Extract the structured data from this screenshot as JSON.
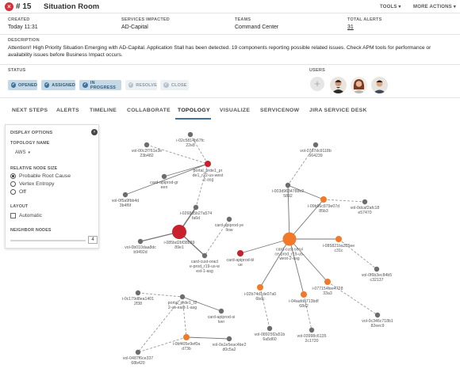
{
  "header": {
    "incident_number": "# 15",
    "title": "Situation Room",
    "tools_label": "TOOLS ▾",
    "more_actions_label": "MORE ACTIONS ▾"
  },
  "details": {
    "created_label": "CREATED",
    "created_value": "Today 11:31",
    "services_label": "SERVICES IMPACTED",
    "services_value": "AD-Capital",
    "teams_label": "TEAMS",
    "teams_value": "Command Center",
    "alerts_label": "TOTAL ALERTS",
    "alerts_value": "31",
    "description_label": "DESCRIPTION",
    "description_text": "Attention!! High Priority Situation Emerging with AD-Capital. Application Stall has been detected. 19 components reporting possible related issues. Check APM tools for performance or availability issues before Business Impact occurs."
  },
  "status": {
    "label": "STATUS",
    "steps": [
      {
        "label": "OPENED",
        "active": true
      },
      {
        "label": "ASSIGNED",
        "active": true
      },
      {
        "label": "IN PROGRESS",
        "active": true
      },
      {
        "label": "RESOLVE",
        "active": false
      },
      {
        "label": "CLOSE",
        "active": false
      }
    ]
  },
  "users": {
    "label": "USERS",
    "add_label": "+"
  },
  "tabs": [
    {
      "label": "NEXT STEPS"
    },
    {
      "label": "ALERTS"
    },
    {
      "label": "TIMELINE"
    },
    {
      "label": "COLLABORATE"
    },
    {
      "label": "TOPOLOGY",
      "active": true
    },
    {
      "label": "VISUALIZE"
    },
    {
      "label": "SERVICENOW"
    },
    {
      "label": "JIRA SERVICE DESK"
    }
  ],
  "display_options": {
    "title": "DISPLAY OPTIONS",
    "collapse_icon": "chevron-up-icon",
    "topology_name_label": "TOPOLOGY NAME",
    "topology_name_value": "AWS",
    "relative_node_size_label": "RELATIVE NODE SIZE",
    "size_options": [
      "Probable Root Cause",
      "Vertex Entropy",
      "Off"
    ],
    "size_selected": "Probable Root Cause",
    "layout_label": "LAYOUT",
    "automatic_label": "Automatic",
    "neighbor_nodes_label": "NEIGHBOR NODES",
    "neighbor_nodes_value": "4"
  },
  "colors": {
    "accent": "#3e739c",
    "critical": "#c8202c",
    "major": "#f07a2a",
    "node_gray": "#6d6d6d"
  },
  "topology": {
    "nodes": [
      {
        "id": "n1",
        "label": "i-02c5814b67fc\n22e8",
        "severity": "normal"
      },
      {
        "id": "n2",
        "label": "vol-00c2f761e3e\n23b482",
        "severity": "normal"
      },
      {
        "id": "n3",
        "label": "portal_prde1_pr\nde1_r22-us-west\n-2-asg",
        "severity": "critical"
      },
      {
        "id": "n4",
        "label": "card-apiprod-gr\neen",
        "severity": "normal"
      },
      {
        "id": "n5",
        "label": "vol-0f5a9fbb4d\n3b4f6f",
        "severity": "normal"
      },
      {
        "id": "n6",
        "label": "i-0268d5b27a574\nfa6d",
        "severity": "normal"
      },
      {
        "id": "n7",
        "label": "card-apiprod-ye\nllow",
        "severity": "normal"
      },
      {
        "id": "n8",
        "label": "vol-0b010daa8dc\nb9492d",
        "severity": "normal"
      },
      {
        "id": "n9",
        "label": "i-085bd2bf38b39\n89e1",
        "severity": "critical"
      },
      {
        "id": "n10",
        "label": "card-cust-oracl\ne-prod_r19-us-w\nest-1-asg",
        "severity": "normal"
      },
      {
        "id": "n11",
        "label": "card-apiprod-bl\nue",
        "severity": "critical"
      },
      {
        "id": "n12",
        "label": "vol-07d7dc9118b\n564239",
        "severity": "normal"
      },
      {
        "id": "n13",
        "label": "i-003d9634788e2\n5892",
        "severity": "normal"
      },
      {
        "id": "n14",
        "label": "i-09b96c879e07d\n85b3",
        "severity": "major"
      },
      {
        "id": "n15",
        "label": "vol-0dcaf2afc18\ne57470",
        "severity": "normal"
      },
      {
        "id": "n16",
        "label": "card-cust-servi\nce-prod_r19-us-\nwest-2-asg",
        "severity": "major"
      },
      {
        "id": "n17",
        "label": "i-085821ba335ee\nc31c",
        "severity": "major"
      },
      {
        "id": "n18",
        "label": "vol-0f6b3ec84b5\nc32137",
        "severity": "normal"
      },
      {
        "id": "n19",
        "label": "i-077154fee4728\n33a3",
        "severity": "major"
      },
      {
        "id": "n20",
        "label": "i-02b74d1de07a0\n6bdc",
        "severity": "major"
      },
      {
        "id": "n21",
        "label": "i-04aafda713bdf\n68d2",
        "severity": "major"
      },
      {
        "id": "n22",
        "label": "vol-0c346c718b1\n82eec9",
        "severity": "normal"
      },
      {
        "id": "n23",
        "label": "vol-08925f2a51b\n6a5d60",
        "severity": "normal"
      },
      {
        "id": "n24",
        "label": "vol-03998c6135\n2c1720",
        "severity": "normal"
      },
      {
        "id": "n25",
        "label": "i-0c179d8ea1401\n2f38",
        "severity": "normal"
      },
      {
        "id": "n26",
        "label": "portal_prde1_r2\n2-us-east-1-asg",
        "severity": "normal"
      },
      {
        "id": "n27",
        "label": "card-apiprod-si\nlver",
        "severity": "normal"
      },
      {
        "id": "n28",
        "label": "i-0bf405e9ef0a\nd73b",
        "severity": "major"
      },
      {
        "id": "n29",
        "label": "vol-0a1e5eac4be2\nd0c5a2",
        "severity": "normal"
      },
      {
        "id": "n30",
        "label": "vol-0487f6ce337\n68b420",
        "severity": "normal"
      }
    ]
  }
}
